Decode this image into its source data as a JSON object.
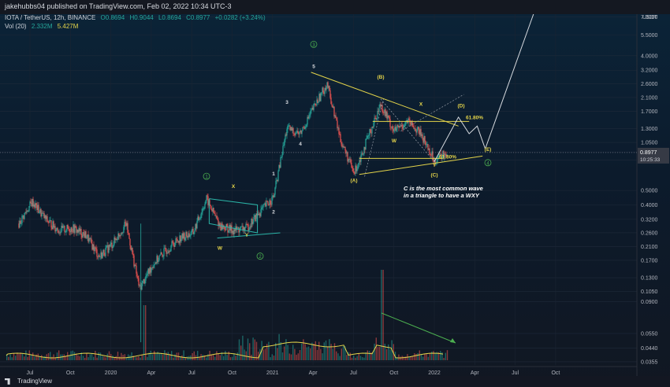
{
  "header": {
    "published_by": "jakehubbs04 published on TradingView.com, Feb 02, 2022 10:34 UTC-3",
    "symbol": "IOTA / TetherUS, 12h, BINANCE",
    "ohlc": {
      "o": "O0.8694",
      "h": "H0.9044",
      "l": "L0.8694",
      "c": "C0.8977",
      "change": "+0.0282 (+3.24%)"
    },
    "vol_label": "Vol (20)",
    "vol_values": [
      "2.332M",
      "5.427M"
    ]
  },
  "footer": {
    "brand": "TradingView"
  },
  "colors": {
    "up": "#26a69a",
    "down": "#ef5350",
    "annotation": "#e4d44a",
    "wave_circle": "#4caf50",
    "white": "#d8dbe0",
    "price_label": "#363a45"
  },
  "chart_data": {
    "type": "candlestick",
    "scale": "log",
    "currency_label": "USDT",
    "y_ticks": [
      7.3,
      5.5,
      4.0,
      3.2,
      2.6,
      2.1,
      1.7,
      1.3,
      1.05,
      0.9,
      0.8,
      0.5,
      0.4,
      0.32,
      0.26,
      0.21,
      0.17,
      0.13,
      0.105,
      0.09,
      0.055,
      0.044,
      0.0355
    ],
    "y_tick_labels": [
      "7.3000",
      "5.5000",
      "4.0000",
      "3.2000",
      "2.6000",
      "2.1000",
      "1.7000",
      "1.3000",
      "1.0500",
      "",
      "",
      "0.5000",
      "0.4000",
      "0.3200",
      "0.2600",
      "0.2100",
      "0.1700",
      "0.1300",
      "0.1050",
      "0.0900",
      "0.0550",
      "0.0440",
      "0.0355"
    ],
    "current_price": {
      "value": 0.8977,
      "label": "0.8977",
      "countdown": "10:25:33"
    },
    "x_ticks": [
      "Jul",
      "Oct",
      "2020",
      "Apr",
      "Jul",
      "Oct",
      "2021",
      "Apr",
      "Jul",
      "Oct",
      "2022",
      "Apr",
      "Jul",
      "Oct"
    ],
    "price_path": [
      {
        "t": "2019-06",
        "p": 0.3
      },
      {
        "t": "2019-07",
        "p": 0.42
      },
      {
        "t": "2019-08",
        "p": 0.32
      },
      {
        "t": "2019-09",
        "p": 0.27
      },
      {
        "t": "2019-10",
        "p": 0.28
      },
      {
        "t": "2019-11",
        "p": 0.25
      },
      {
        "t": "2019-12",
        "p": 0.18
      },
      {
        "t": "2020-01",
        "p": 0.22
      },
      {
        "t": "2020-02",
        "p": 0.3
      },
      {
        "t": "2020-03",
        "p": 0.11
      },
      {
        "t": "2020-04",
        "p": 0.16
      },
      {
        "t": "2020-05",
        "p": 0.2
      },
      {
        "t": "2020-06",
        "p": 0.24
      },
      {
        "t": "2020-07",
        "p": 0.26
      },
      {
        "t": "2020-08",
        "p": 0.44
      },
      {
        "t": "2020-09",
        "p": 0.29
      },
      {
        "t": "2020-10",
        "p": 0.27
      },
      {
        "t": "2020-11",
        "p": 0.28
      },
      {
        "t": "2020-12",
        "p": 0.36
      },
      {
        "t": "2021-01",
        "p": 0.45
      },
      {
        "t": "2021-02",
        "p": 1.3
      },
      {
        "t": "2021-03",
        "p": 1.2
      },
      {
        "t": "2021-04",
        "p": 1.8
      },
      {
        "t": "2021-05",
        "p": 2.6
      },
      {
        "t": "2021-06",
        "p": 1.1
      },
      {
        "t": "2021-07",
        "p": 0.65
      },
      {
        "t": "2021-08",
        "p": 1.1
      },
      {
        "t": "2021-09",
        "p": 1.9
      },
      {
        "t": "2021-10",
        "p": 1.25
      },
      {
        "t": "2021-11",
        "p": 1.45
      },
      {
        "t": "2021-12",
        "p": 1.2
      },
      {
        "t": "2022-01",
        "p": 0.8
      },
      {
        "t": "2022-02",
        "p": 0.9
      }
    ],
    "annotations": [
      {
        "text": "1",
        "t": "2020-08",
        "p": 0.6,
        "style": "circle-green"
      },
      {
        "text": "X",
        "t": "2020-10",
        "p": 0.52,
        "style": "yellow"
      },
      {
        "text": "W",
        "t": "2020-09",
        "p": 0.2,
        "style": "yellow"
      },
      {
        "text": "Y",
        "t": "2020-11",
        "p": 0.245,
        "style": "yellow"
      },
      {
        "text": "2",
        "t": "2020-12",
        "p": 0.175,
        "style": "circle-green"
      },
      {
        "text": "1",
        "t": "2021-01",
        "p": 0.63,
        "style": "white"
      },
      {
        "text": "2",
        "t": "2021-01",
        "p": 0.35,
        "style": "white"
      },
      {
        "text": "3",
        "t": "2021-02",
        "p": 1.9,
        "style": "white"
      },
      {
        "text": "4",
        "t": "2021-03",
        "p": 1.0,
        "style": "white"
      },
      {
        "text": "5",
        "t": "2021-04",
        "p": 3.3,
        "style": "white"
      },
      {
        "text": "3",
        "t": "2021-04",
        "p": 4.6,
        "style": "circle-green"
      },
      {
        "text": "(B)",
        "t": "2021-09",
        "p": 2.8,
        "style": "yellow"
      },
      {
        "text": "(A)",
        "t": "2021-07",
        "p": 0.57,
        "style": "yellow"
      },
      {
        "text": "W",
        "t": "2021-10",
        "p": 1.05,
        "style": "yellow"
      },
      {
        "text": "X",
        "t": "2021-12",
        "p": 1.85,
        "style": "yellow"
      },
      {
        "text": "Y",
        "t": "2022-01",
        "p": 0.72,
        "style": "yellow"
      },
      {
        "text": "(C)",
        "t": "2022-01",
        "p": 0.62,
        "style": "yellow"
      },
      {
        "text": "(D)",
        "t": "2022-03",
        "p": 1.8,
        "style": "yellow"
      },
      {
        "text": "61.80%",
        "t": "2022-04",
        "p": 1.5,
        "style": "yellow"
      },
      {
        "text": "61.80%",
        "t": "2022-02",
        "p": 0.82,
        "style": "yellow"
      },
      {
        "text": "(E)",
        "t": "2022-05",
        "p": 0.92,
        "style": "yellow"
      },
      {
        "text": "4",
        "t": "2022-05",
        "p": 0.74,
        "style": "circle-green"
      }
    ],
    "note_lines": [
      "C is the most common wave",
      "in a triangle to have a WXY"
    ]
  }
}
